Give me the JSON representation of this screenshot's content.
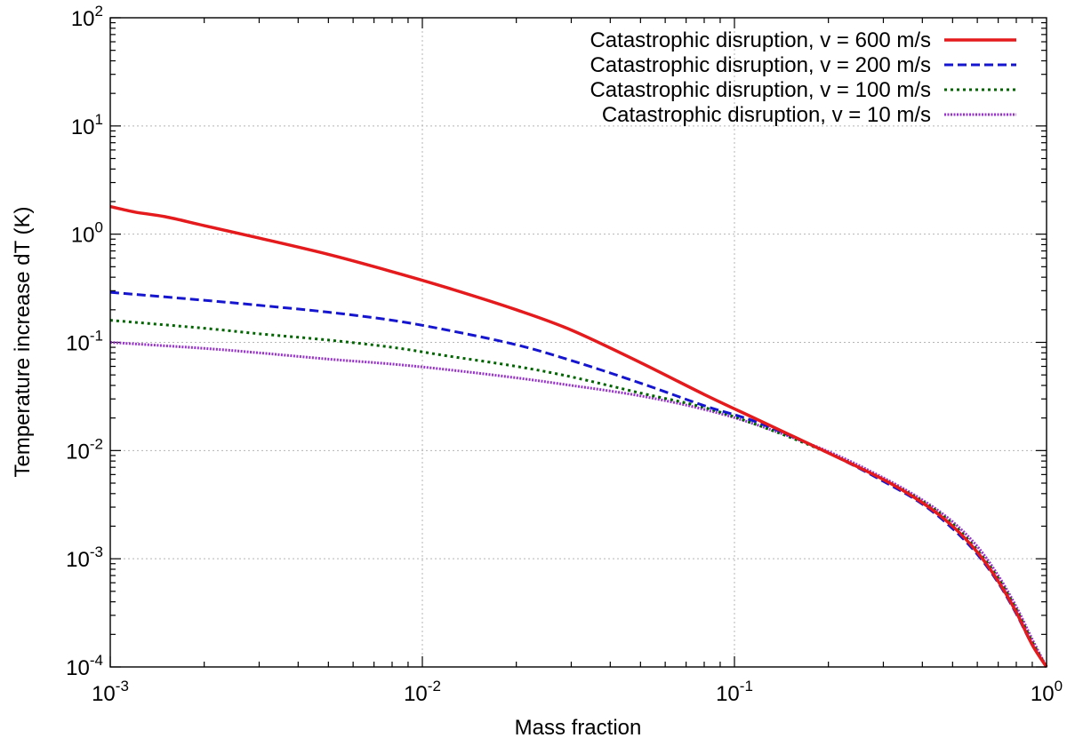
{
  "chart_data": {
    "type": "line",
    "xlabel": "Mass fraction",
    "ylabel": "Temperature increase dT (K)",
    "xscale": "log",
    "yscale": "log",
    "xlim": [
      0.001,
      1
    ],
    "ylim": [
      0.0001,
      100
    ],
    "grid": true,
    "legend_position": "top-right",
    "x_ticks": [
      {
        "value": 0.001,
        "base": "10",
        "exp": "-3"
      },
      {
        "value": 0.01,
        "base": "10",
        "exp": "-2"
      },
      {
        "value": 0.1,
        "base": "10",
        "exp": "-1"
      },
      {
        "value": 1,
        "base": "10",
        "exp": "0"
      }
    ],
    "y_ticks": [
      {
        "value": 0.0001,
        "base": "10",
        "exp": "-4"
      },
      {
        "value": 0.001,
        "base": "10",
        "exp": "-3"
      },
      {
        "value": 0.01,
        "base": "10",
        "exp": "-2"
      },
      {
        "value": 0.1,
        "base": "10",
        "exp": "-1"
      },
      {
        "value": 1,
        "base": "10",
        "exp": "0"
      },
      {
        "value": 10,
        "base": "10",
        "exp": "1"
      },
      {
        "value": 100,
        "base": "10",
        "exp": "2"
      }
    ],
    "series": [
      {
        "name": "Catastrophic disruption, v = 600 m/s",
        "color": "#e41a1c",
        "dash": "solid",
        "x": [
          0.001,
          0.0012,
          0.0015,
          0.002,
          0.003,
          0.005,
          0.008,
          0.012,
          0.02,
          0.03,
          0.05,
          0.08,
          0.12,
          0.2,
          0.3,
          0.4,
          0.5,
          0.6,
          0.7,
          0.8,
          0.9,
          1.0
        ],
        "y": [
          1.8,
          1.6,
          1.45,
          1.2,
          0.92,
          0.65,
          0.45,
          0.32,
          0.2,
          0.13,
          0.065,
          0.033,
          0.019,
          0.0095,
          0.0054,
          0.0033,
          0.002,
          0.00115,
          0.00062,
          0.00032,
          0.00016,
          0.0001
        ]
      },
      {
        "name": "Catastrophic disruption, v = 200 m/s",
        "color": "#1515d0",
        "dash": "dashed",
        "x": [
          0.001,
          0.002,
          0.003,
          0.005,
          0.008,
          0.012,
          0.02,
          0.03,
          0.05,
          0.08,
          0.12,
          0.2,
          0.3,
          0.4,
          0.5,
          0.6,
          0.7,
          0.8,
          0.9,
          1.0
        ],
        "y": [
          0.29,
          0.245,
          0.22,
          0.19,
          0.16,
          0.13,
          0.095,
          0.068,
          0.042,
          0.026,
          0.018,
          0.0095,
          0.0052,
          0.0032,
          0.0019,
          0.0011,
          0.0006,
          0.00031,
          0.00016,
          0.0001
        ]
      },
      {
        "name": "Catastrophic disruption, v = 100 m/s",
        "color": "#006400",
        "dash": "dotted",
        "x": [
          0.001,
          0.002,
          0.003,
          0.005,
          0.008,
          0.012,
          0.02,
          0.03,
          0.05,
          0.08,
          0.12,
          0.2,
          0.3,
          0.4,
          0.5,
          0.6,
          0.7,
          0.8,
          0.9,
          1.0
        ],
        "y": [
          0.16,
          0.135,
          0.12,
          0.105,
          0.09,
          0.075,
          0.06,
          0.048,
          0.034,
          0.025,
          0.017,
          0.0095,
          0.0054,
          0.0034,
          0.0021,
          0.0012,
          0.00066,
          0.00034,
          0.00017,
          0.0001
        ]
      },
      {
        "name": "Catastrophic disruption, v = 10 m/s",
        "color": "#9932cc",
        "dash": "dotted",
        "x": [
          0.001,
          0.002,
          0.003,
          0.005,
          0.008,
          0.012,
          0.02,
          0.03,
          0.05,
          0.08,
          0.12,
          0.2,
          0.3,
          0.4,
          0.5,
          0.6,
          0.7,
          0.8,
          0.9,
          1.0
        ],
        "y": [
          0.1,
          0.088,
          0.08,
          0.07,
          0.063,
          0.056,
          0.047,
          0.04,
          0.032,
          0.024,
          0.017,
          0.0098,
          0.0056,
          0.0035,
          0.0022,
          0.0013,
          0.0007,
          0.00036,
          0.00018,
          0.0001
        ]
      }
    ]
  }
}
